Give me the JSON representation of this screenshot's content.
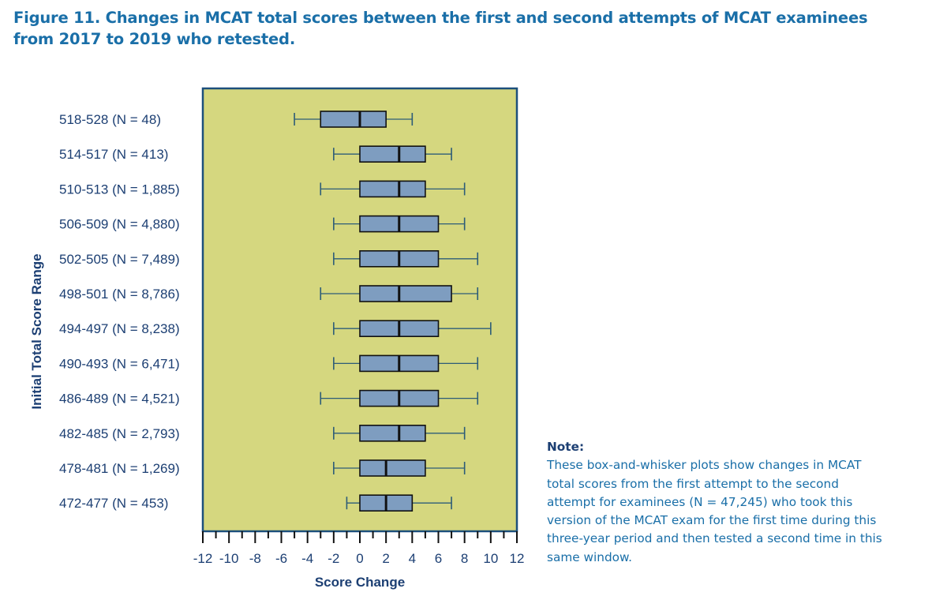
{
  "title": {
    "line1": "Figure 11. Changes in MCAT total scores between the first and second attempts of MCAT examinees",
    "line2": "from 2017 to 2019 who retested."
  },
  "note": {
    "heading": "Note:",
    "body": "These box-and-whisker plots show changes in MCAT total scores from the first attempt to the second attempt for examinees (N = 47,245) who took this version of the MCAT exam for the first time during this three-year period and then tested a second time in this same window."
  },
  "colors": {
    "plot_background": "#d5d77f",
    "plot_border": "#1c4f7c",
    "box_fill": "#7e9dc0",
    "box_stroke": "#111111",
    "whisker": "#2d5c78",
    "text": "#1c3f73",
    "title": "#1a6fa8"
  },
  "chart_data": {
    "type": "boxplot",
    "orientation": "horizontal",
    "title": "Figure 11. Changes in MCAT total scores between the first and second attempts of MCAT examinees from 2017 to 2019 who retested.",
    "xlabel": "Score Change",
    "ylabel": "Initial Total Score Range",
    "xlim": [
      -12,
      12
    ],
    "xticks": [
      -12,
      -10,
      -8,
      -6,
      -4,
      -2,
      0,
      2,
      4,
      6,
      8,
      10,
      12
    ],
    "minor_tick_step": 1,
    "grid": false,
    "categories": [
      "518-528 (N = 48)",
      "514-517 (N = 413)",
      "510-513 (N = 1,885)",
      "506-509 (N = 4,880)",
      "502-505 (N = 7,489)",
      "498-501 (N = 8,786)",
      "494-497 (N = 8,238)",
      "490-493 (N = 6,471)",
      "486-489 (N = 4,521)",
      "482-485 (N = 2,793)",
      "478-481 (N = 1,269)",
      "472-477 (N = 453)"
    ],
    "boxes": [
      {
        "range": "518-528",
        "n": 48,
        "whisker_low": -5,
        "q1": -3,
        "median": 0,
        "q3": 2,
        "whisker_high": 4
      },
      {
        "range": "514-517",
        "n": 413,
        "whisker_low": -2,
        "q1": 0,
        "median": 3,
        "q3": 5,
        "whisker_high": 7
      },
      {
        "range": "510-513",
        "n": 1885,
        "whisker_low": -3,
        "q1": 0,
        "median": 3,
        "q3": 5,
        "whisker_high": 8
      },
      {
        "range": "506-509",
        "n": 4880,
        "whisker_low": -2,
        "q1": 0,
        "median": 3,
        "q3": 6,
        "whisker_high": 8
      },
      {
        "range": "502-505",
        "n": 7489,
        "whisker_low": -2,
        "q1": 0,
        "median": 3,
        "q3": 6,
        "whisker_high": 9
      },
      {
        "range": "498-501",
        "n": 8786,
        "whisker_low": -3,
        "q1": 0,
        "median": 3,
        "q3": 7,
        "whisker_high": 9
      },
      {
        "range": "494-497",
        "n": 8238,
        "whisker_low": -2,
        "q1": 0,
        "median": 3,
        "q3": 6,
        "whisker_high": 10
      },
      {
        "range": "490-493",
        "n": 6471,
        "whisker_low": -2,
        "q1": 0,
        "median": 3,
        "q3": 6,
        "whisker_high": 9
      },
      {
        "range": "486-489",
        "n": 4521,
        "whisker_low": -3,
        "q1": 0,
        "median": 3,
        "q3": 6,
        "whisker_high": 9
      },
      {
        "range": "482-485",
        "n": 2793,
        "whisker_low": -2,
        "q1": 0,
        "median": 3,
        "q3": 5,
        "whisker_high": 8
      },
      {
        "range": "478-481",
        "n": 1269,
        "whisker_low": -2,
        "q1": 0,
        "median": 2,
        "q3": 5,
        "whisker_high": 8
      },
      {
        "range": "472-477",
        "n": 453,
        "whisker_low": -1,
        "q1": 0,
        "median": 2,
        "q3": 4,
        "whisker_high": 7
      }
    ]
  }
}
